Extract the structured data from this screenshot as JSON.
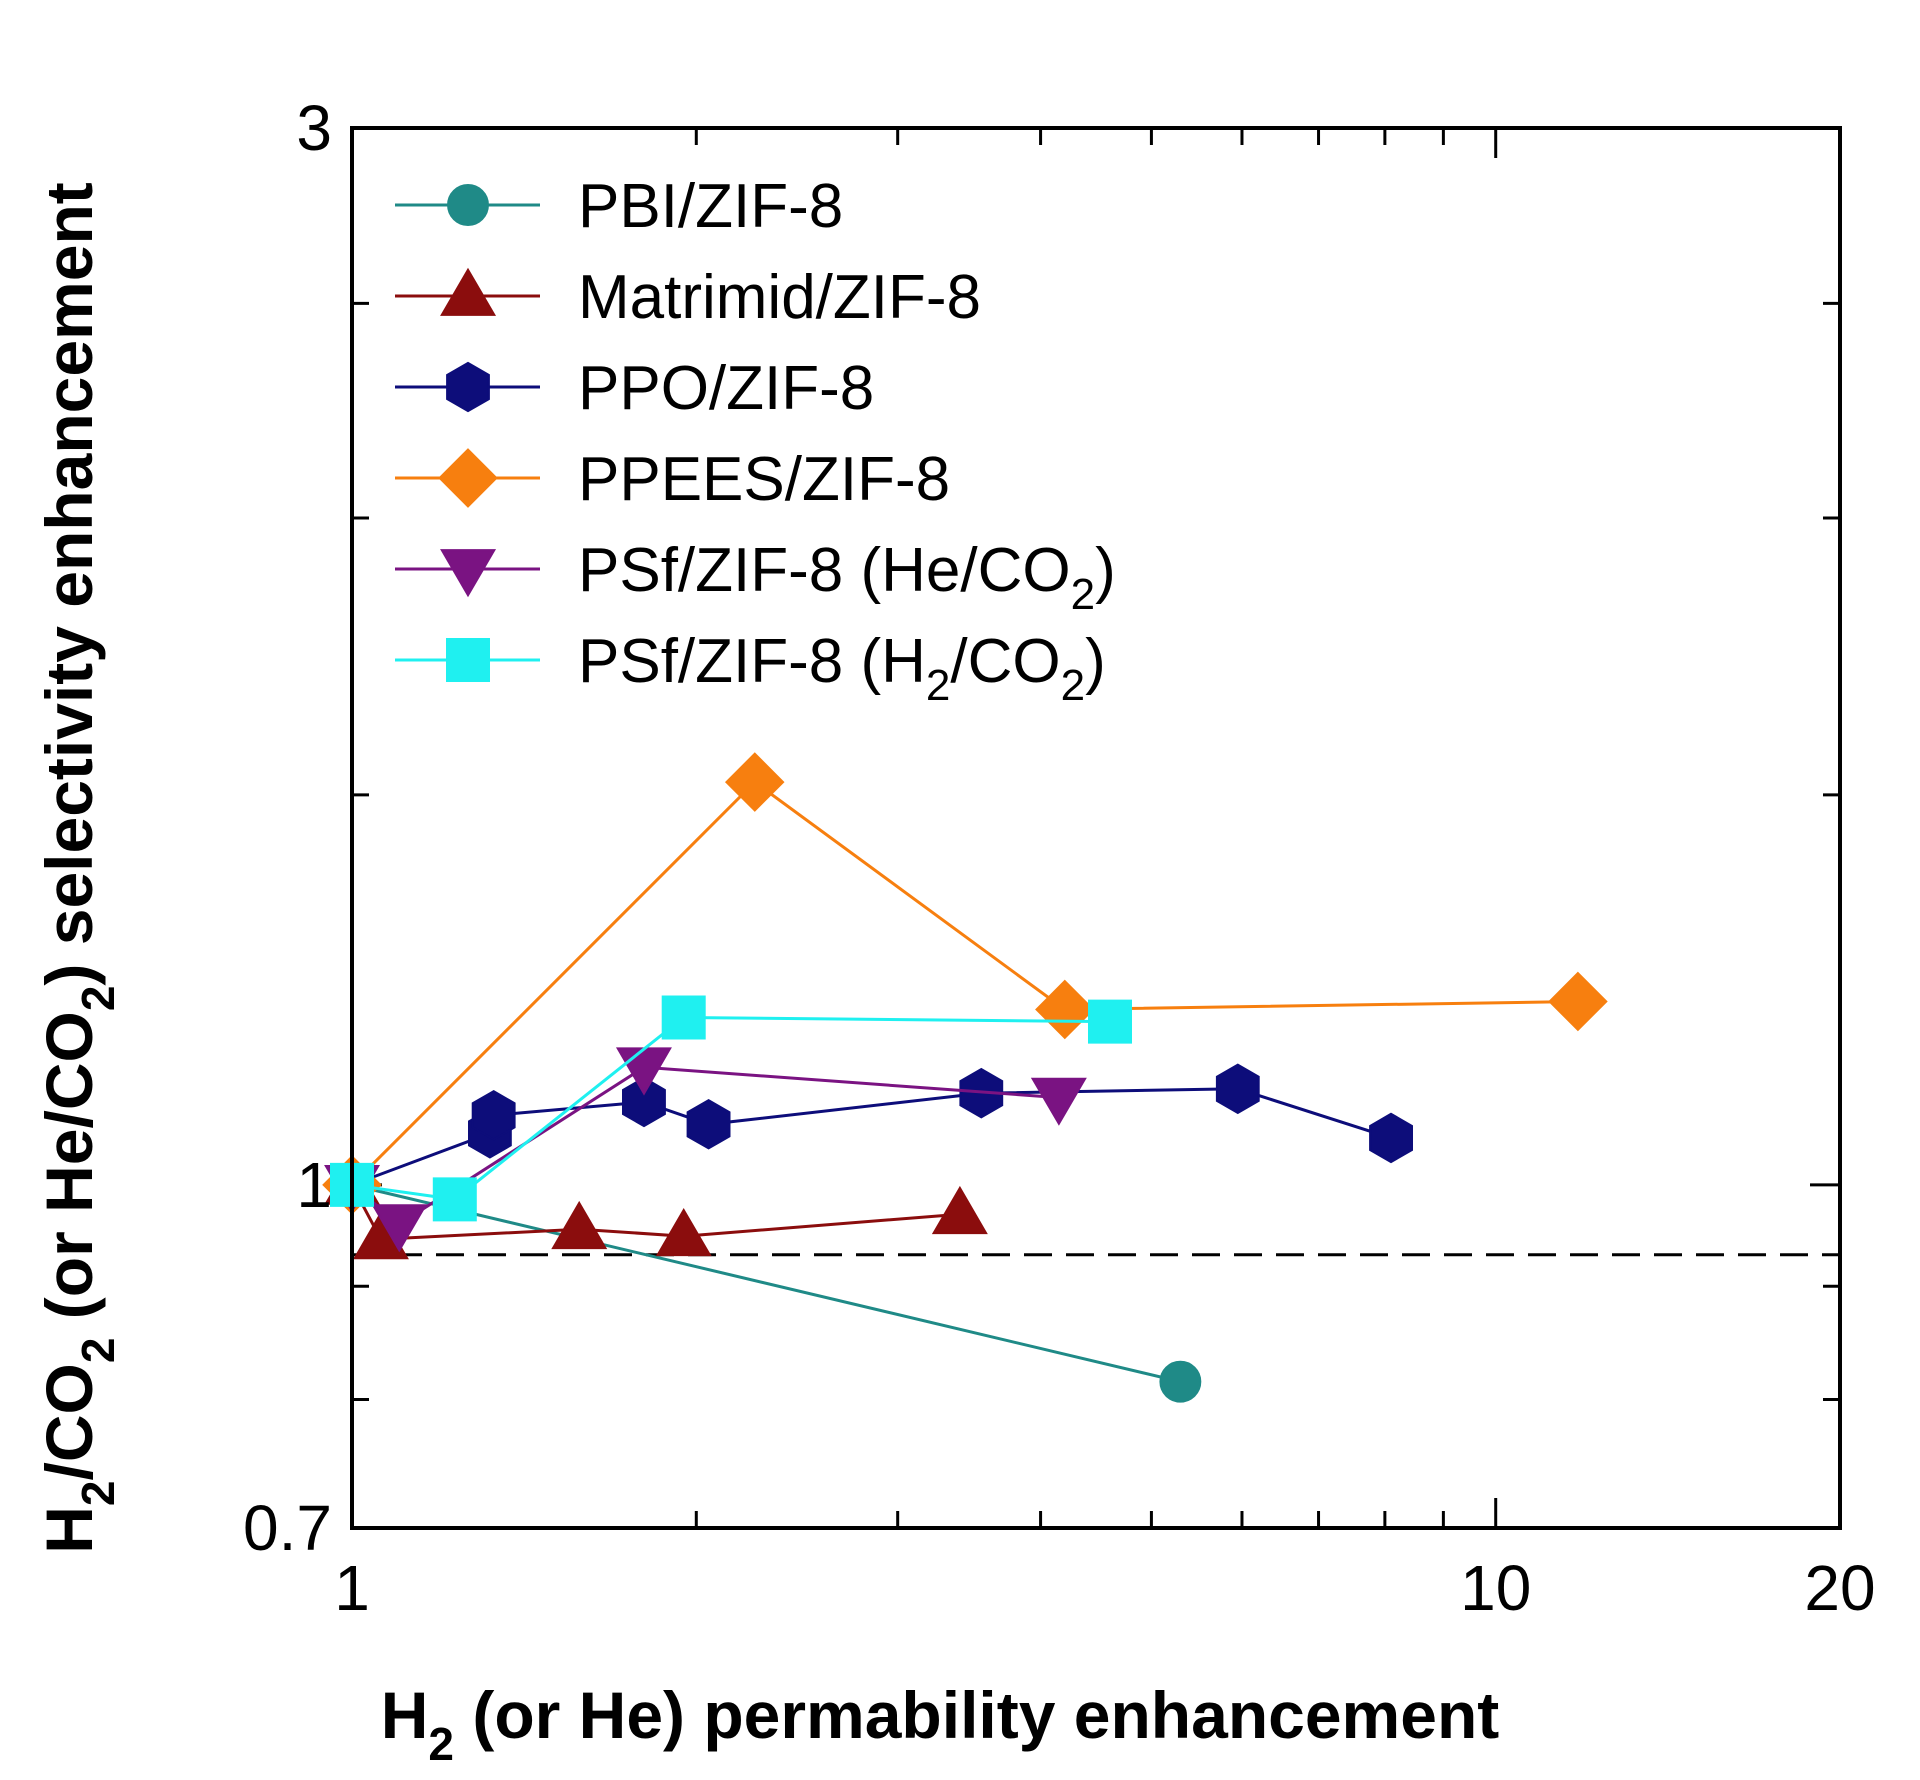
{
  "chart_data": {
    "type": "line",
    "xscale": "log",
    "yscale": "log",
    "xlim": [
      1,
      20
    ],
    "ylim": [
      0.7,
      3
    ],
    "xlabel": {
      "main": "H",
      "sub": "2",
      "rest": " (or He) permability enhancement"
    },
    "ylabel": {
      "p1": "H",
      "s1": "2",
      "p2": "/CO",
      "s2": "2",
      "p3": " (or He/CO",
      "s3": "2",
      "p4": ") selectivity enhancement"
    },
    "x_ticks": [
      {
        "value": 1,
        "label": "1"
      },
      {
        "value": 10,
        "label": "10"
      },
      {
        "value": 20,
        "label": "20"
      }
    ],
    "y_ticks": [
      {
        "value": 0.7,
        "label": "0.7"
      },
      {
        "value": 1,
        "label": "1"
      },
      {
        "value": 3,
        "label": "3"
      }
    ],
    "reference_line": {
      "y": 0.93,
      "style": "dashed"
    },
    "series": [
      {
        "name": "PBI/ZIF-8",
        "label_main": "PBI/ZIF-8",
        "marker": "circle",
        "color": "#1f8a87",
        "points": [
          [
            1.0,
            1.0
          ],
          [
            5.3,
            0.815
          ]
        ]
      },
      {
        "name": "Matrimid/ZIF-8",
        "label_main": "Matrimid/ZIF-8",
        "marker": "triangle-up",
        "color": "#8b0d0d",
        "points": [
          [
            1.0,
            1.0
          ],
          [
            1.06,
            0.945
          ],
          [
            1.58,
            0.955
          ],
          [
            1.95,
            0.948
          ],
          [
            3.4,
            0.97
          ]
        ]
      },
      {
        "name": "PPO/ZIF-8",
        "label_main": "PPO/ZIF-8",
        "marker": "hexagon",
        "color": "#0d0d7a",
        "points": [
          [
            1.0,
            1.0
          ],
          [
            1.32,
            1.055
          ],
          [
            1.33,
            1.075
          ],
          [
            1.8,
            1.09
          ],
          [
            2.05,
            1.065
          ],
          [
            3.55,
            1.1
          ],
          [
            5.95,
            1.105
          ],
          [
            8.1,
            1.05
          ]
        ]
      },
      {
        "name": "PPEES/ZIF-8",
        "label_main": "PPEES/ZIF-8",
        "marker": "diamond",
        "color": "#f77f0f",
        "points": [
          [
            1.0,
            1.0
          ],
          [
            2.25,
            1.52
          ],
          [
            4.2,
            1.2
          ],
          [
            11.8,
            1.21
          ]
        ]
      },
      {
        "name": "PSf/ZIF-8 (He/CO2)",
        "label_main": "PSf/ZIF-8 (He/CO",
        "label_sub": "2",
        "label_tail": ")",
        "marker": "triangle-down",
        "color": "#7a1382",
        "points": [
          [
            1.0,
            1.0
          ],
          [
            1.1,
            0.96
          ],
          [
            1.8,
            1.13
          ],
          [
            4.15,
            1.095
          ]
        ]
      },
      {
        "name": "PSf/ZIF-8 (H2/CO2)",
        "label_main": "PSf/ZIF-8 (H",
        "label_sub": "2",
        "label_tail": "/CO",
        "label_sub2": "2",
        "label_tail2": ")",
        "marker": "square",
        "color": "#1ff0f0",
        "points": [
          [
            1.0,
            1.0
          ],
          [
            1.23,
            0.985
          ],
          [
            1.95,
            1.19
          ],
          [
            4.6,
            1.185
          ]
        ]
      }
    ]
  }
}
